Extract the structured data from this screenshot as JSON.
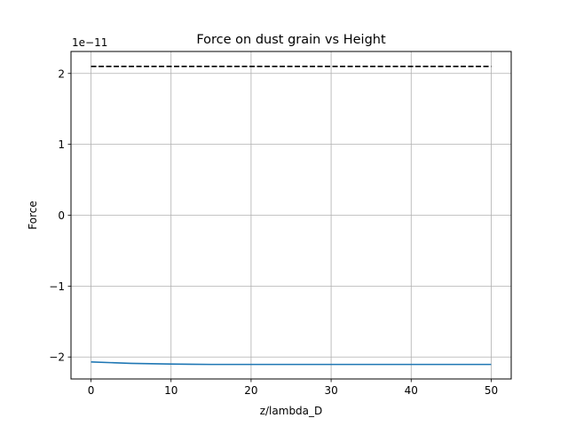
{
  "chart_data": {
    "type": "line",
    "title": "Force on dust grain vs Height",
    "xlabel": "z/lambda_D",
    "ylabel": "Force",
    "offset_text": "1e−11",
    "xlim": [
      -2.5,
      52.5
    ],
    "ylim": [
      -2.31,
      2.31
    ],
    "y_scale_exponent": -11,
    "grid": true,
    "legend": "none",
    "x_ticks": [
      0,
      10,
      20,
      30,
      40,
      50
    ],
    "x_tick_labels": [
      "0",
      "10",
      "20",
      "30",
      "40",
      "50"
    ],
    "y_ticks": [
      -2,
      -1,
      0,
      1,
      2
    ],
    "y_tick_labels": [
      "−2",
      "−1",
      "0",
      "1",
      "2"
    ],
    "series": [
      {
        "color": "#1f77b4",
        "style": "solid",
        "x": [
          0,
          2.5,
          5,
          7.5,
          10,
          12.5,
          15,
          20,
          30,
          40,
          50
        ],
        "y": [
          -2.07,
          -2.08,
          -2.09,
          -2.095,
          -2.1,
          -2.102,
          -2.105,
          -2.105,
          -2.105,
          -2.105,
          -2.105
        ]
      },
      {
        "color": "#000000",
        "style": "dashed",
        "x": [
          0,
          50
        ],
        "y": [
          2.1,
          2.1
        ]
      }
    ]
  }
}
